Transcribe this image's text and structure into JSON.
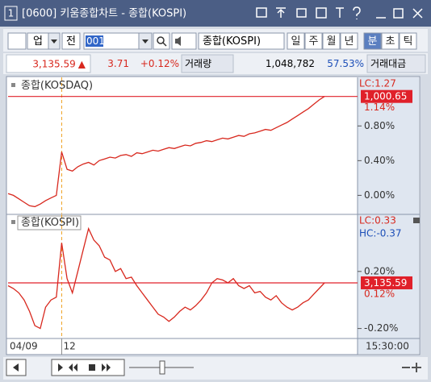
{
  "window": {
    "number": "1",
    "title": "[0600] 키움종합차트 - 종합(KOSPI)"
  },
  "toolbar": {
    "market": "업",
    "all": "전",
    "code": "001",
    "name": "종합(KOSPI)",
    "periods": [
      "일",
      "주",
      "월",
      "년",
      "분",
      "초",
      "틱"
    ],
    "active_period": 4
  },
  "quote": {
    "price": "3,135.59",
    "arrow": "▲",
    "change": "3.71",
    "change_rate": "+0.12%",
    "volume_label": "거래량",
    "volume": "1,048,782",
    "volume_ratio": "57.53%",
    "amount_label": "거래대금"
  },
  "panels": [
    {
      "title": "종합(KOSDAQ)",
      "lc": "LC:1.27",
      "last_label": "1,000.65",
      "change_label": "1.14%",
      "color": "#d8281e",
      "ylim": [
        -0.21,
        1.36
      ],
      "yticks": [
        {
          "value": 0,
          "label": "0.00%"
        },
        {
          "value": 0.4,
          "label": "0.40%"
        },
        {
          "value": 0.8,
          "label": "0.80%"
        }
      ],
      "values": [
        0.02,
        0.0,
        -0.04,
        -0.08,
        -0.12,
        -0.13,
        -0.1,
        -0.06,
        -0.03,
        0.0,
        0.5,
        0.3,
        0.28,
        0.33,
        0.36,
        0.38,
        0.35,
        0.4,
        0.42,
        0.44,
        0.43,
        0.46,
        0.47,
        0.45,
        0.49,
        0.48,
        0.5,
        0.52,
        0.51,
        0.53,
        0.55,
        0.54,
        0.56,
        0.58,
        0.57,
        0.6,
        0.61,
        0.63,
        0.62,
        0.64,
        0.66,
        0.65,
        0.67,
        0.69,
        0.68,
        0.71,
        0.72,
        0.74,
        0.76,
        0.75,
        0.78,
        0.81,
        0.84,
        0.88,
        0.92,
        0.96,
        1.0,
        1.05,
        1.1,
        1.14
      ]
    },
    {
      "title": "종합(KOSPI)",
      "lc": "LC:0.33",
      "hc": "HC:-0.37",
      "last_label": "3,135.59",
      "change_label": "0.12%",
      "color": "#d8281e",
      "ylim": [
        -0.27,
        0.6
      ],
      "yticks": [
        {
          "value": 0.2,
          "label": "0.20%"
        },
        {
          "value": -0.2,
          "label": "-0.20%"
        }
      ],
      "values": [
        0.1,
        0.08,
        0.05,
        0.0,
        -0.08,
        -0.18,
        -0.2,
        -0.05,
        0.0,
        0.02,
        0.4,
        0.15,
        0.05,
        0.2,
        0.35,
        0.5,
        0.42,
        0.38,
        0.3,
        0.28,
        0.2,
        0.22,
        0.15,
        0.16,
        0.1,
        0.05,
        0.0,
        -0.05,
        -0.1,
        -0.12,
        -0.15,
        -0.12,
        -0.08,
        -0.05,
        -0.07,
        -0.04,
        0.0,
        0.05,
        0.12,
        0.15,
        0.14,
        0.12,
        0.15,
        0.1,
        0.08,
        0.1,
        0.05,
        0.06,
        0.02,
        0.0,
        0.03,
        -0.02,
        -0.05,
        -0.07,
        -0.05,
        -0.02,
        0.0,
        0.04,
        0.08,
        0.12
      ]
    }
  ],
  "x_labels": {
    "start": "04/09",
    "day": "12",
    "end": "15:30:00"
  }
}
